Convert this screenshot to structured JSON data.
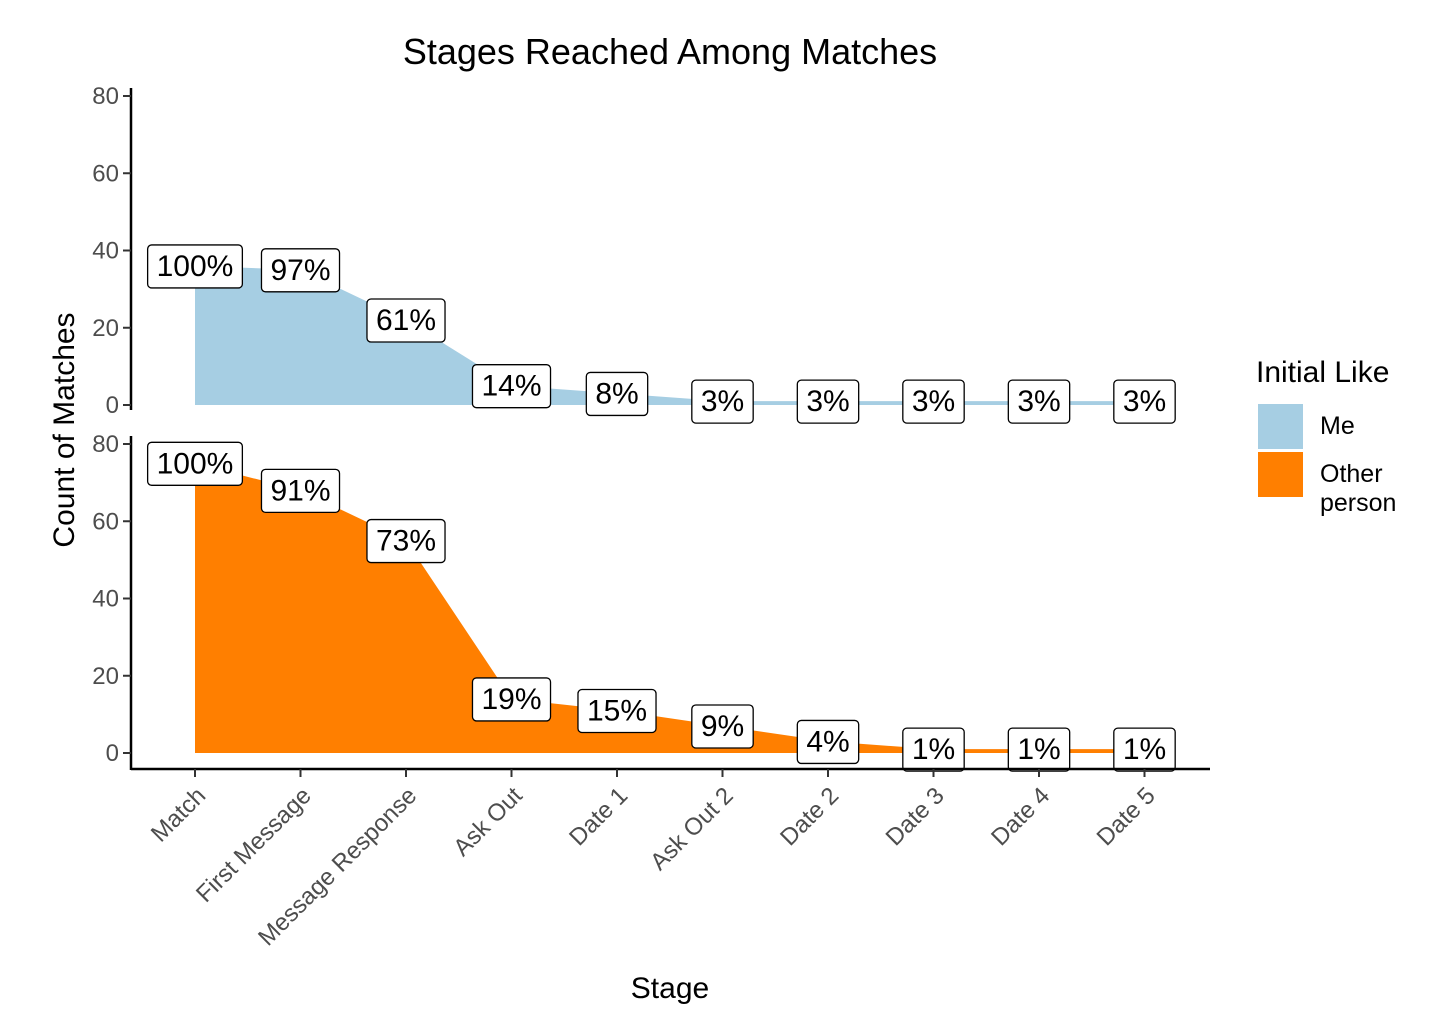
{
  "chart_data": {
    "type": "area",
    "title": "Stages Reached Among Matches",
    "xlabel": "Stage",
    "ylabel": "Count of Matches",
    "categories": [
      "Match",
      "First Message",
      "Message Response",
      "Ask Out",
      "Date 1",
      "Ask Out 2",
      "Date 2",
      "Date 3",
      "Date 4",
      "Date 5"
    ],
    "ylim": [
      0,
      80
    ],
    "yticks": [
      "0",
      "20",
      "40",
      "60",
      "80"
    ],
    "legend": {
      "title": "Initial Like",
      "position": "right"
    },
    "grid": false,
    "facets": [
      {
        "name": "Me",
        "color": "#a6cee3",
        "values": [
          36,
          35,
          22,
          5,
          3,
          1,
          1,
          1,
          1,
          1
        ],
        "labels": [
          "100%",
          "97%",
          "61%",
          "14%",
          "8%",
          "3%",
          "3%",
          "3%",
          "3%",
          "3%"
        ]
      },
      {
        "name": "Other person",
        "legend_lines": [
          "Other",
          "person"
        ],
        "color": "#ff7f00",
        "values": [
          75,
          68,
          55,
          14,
          11,
          7,
          3,
          1,
          1,
          1
        ],
        "labels": [
          "100%",
          "91%",
          "73%",
          "19%",
          "15%",
          "9%",
          "4%",
          "1%",
          "1%",
          "1%"
        ]
      }
    ]
  }
}
